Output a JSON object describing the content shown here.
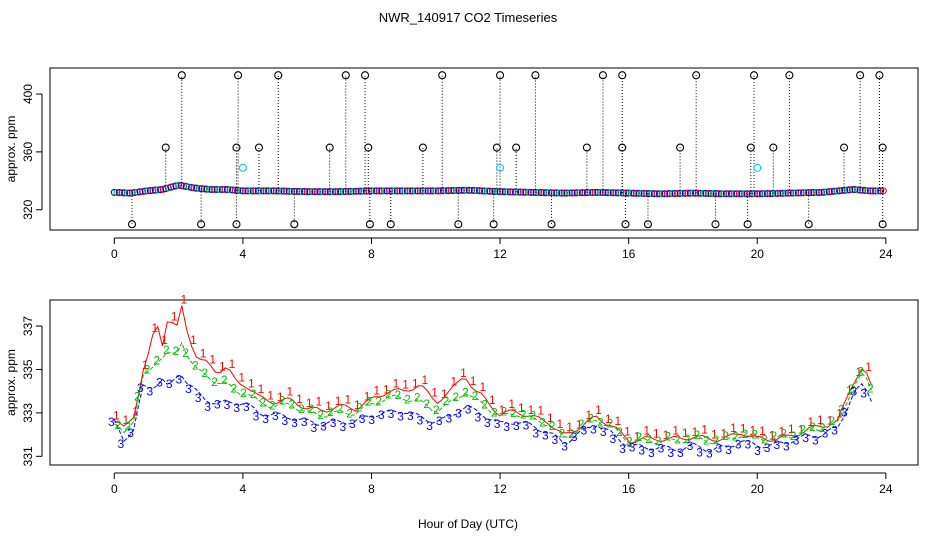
{
  "chart_data": {
    "type": "scatter",
    "title": "NWR_140917  CO2 Timeseries",
    "xlabel": "Hour of Day (UTC)",
    "colors": {
      "s1": "#ff0000",
      "s2": "#00c000",
      "s3": "#0000ff",
      "outlier": "#000000",
      "cyan": "#00d0d0"
    },
    "panels": [
      {
        "ylabel": "approx. ppm",
        "xlim": [
          -2,
          25
        ],
        "ylim": [
          306,
          418
        ],
        "xticks": [
          0,
          4,
          8,
          12,
          16,
          20,
          24
        ],
        "yticks": [
          320,
          360,
          400
        ],
        "baseline_hours": [
          0,
          0.5,
          1,
          1.5,
          2,
          2.5,
          3,
          3.5,
          4,
          5,
          6,
          7,
          8,
          9,
          10,
          11,
          12,
          13,
          14,
          15,
          16,
          17,
          18,
          19,
          20,
          21,
          22,
          23,
          23.5,
          24
        ],
        "baseline_ppm": [
          332,
          331.5,
          333,
          334,
          337,
          335,
          334,
          334,
          333,
          333,
          332.5,
          332.5,
          333,
          333,
          333,
          333.5,
          332.5,
          332,
          331.5,
          332,
          331.5,
          331,
          331.5,
          331,
          331,
          331.5,
          332,
          334,
          333,
          333
        ],
        "outliers_high": [
          2.1,
          3.85,
          5.1,
          7.2,
          7.8,
          10.2,
          12.0,
          13.1,
          15.2,
          15.8,
          18.1,
          19.9,
          21.0,
          23.2,
          23.8
        ],
        "outliers_high_ppm": 413,
        "outliers_mid": [
          1.6,
          3.8,
          4.5,
          6.7,
          7.9,
          9.6,
          11.9,
          12.5,
          14.7,
          15.8,
          17.6,
          19.8,
          20.5,
          22.7,
          23.9
        ],
        "outliers_mid_ppm": 363,
        "outliers_low": [
          0.55,
          2.7,
          3.8,
          5.6,
          7.95,
          8.6,
          10.7,
          11.8,
          13.6,
          15.9,
          16.6,
          18.7,
          19.7,
          21.6,
          23.9
        ],
        "outliers_low_ppm": 310,
        "cyan_points": [
          {
            "x": 4.0,
            "y": 349
          },
          {
            "x": 12.0,
            "y": 349
          },
          {
            "x": 20.0,
            "y": 349
          }
        ]
      },
      {
        "ylabel": "approx. ppm",
        "xlim": [
          -2,
          25
        ],
        "ylim": [
          330.6,
          338.2
        ],
        "xticks": [
          0,
          4,
          8,
          12,
          16,
          20,
          24
        ],
        "yticks": [
          331,
          333,
          335,
          337
        ],
        "series": [
          {
            "name": "1",
            "hours": [
              0,
              0.3,
              0.6,
              0.9,
              1.1,
              1.3,
              1.5,
              1.7,
              1.9,
              2.1,
              2.3,
              2.6,
              2.9,
              3.2,
              3.5,
              3.8,
              4.1,
              4.5,
              5,
              5.5,
              6,
              6.5,
              7,
              7.5,
              8,
              8.5,
              9,
              9.5,
              10,
              10.3,
              10.6,
              10.9,
              11.2,
              11.5,
              12,
              12.5,
              13,
              13.5,
              14,
              14.5,
              15,
              15.5,
              16,
              16.5,
              17,
              17.5,
              18,
              18.5,
              19,
              19.5,
              20,
              20.5,
              21,
              21.5,
              22,
              22.5,
              23,
              23.3,
              23.6
            ],
            "values": [
              332.6,
              332.3,
              332.9,
              334.9,
              335.8,
              337.3,
              336.2,
              337.6,
              336.6,
              337.9,
              336.6,
              335.4,
              335.3,
              334.9,
              335.1,
              334.4,
              334.3,
              333.7,
              333.5,
              333.6,
              333.2,
              333.1,
              333.3,
              333.2,
              333.6,
              334.0,
              334.0,
              334.3,
              333.5,
              333.8,
              334.2,
              334.8,
              334.0,
              333.7,
              332.9,
              333.1,
              332.8,
              332.6,
              331.9,
              332.4,
              332.8,
              332.4,
              331.7,
              331.8,
              331.8,
              331.8,
              331.9,
              331.8,
              331.8,
              332.1,
              331.8,
              331.8,
              331.9,
              332.2,
              332.4,
              332.6,
              334.5,
              335.1,
              334.0
            ]
          },
          {
            "name": "2",
            "hours": [
              0,
              0.3,
              0.6,
              0.9,
              1.1,
              1.3,
              1.5,
              1.7,
              1.9,
              2.1,
              2.3,
              2.6,
              2.9,
              3.2,
              3.5,
              3.8,
              4.1,
              4.5,
              5,
              5.5,
              6,
              6.5,
              7,
              7.5,
              8,
              8.5,
              9,
              9.5,
              10,
              10.3,
              10.6,
              10.9,
              11.2,
              11.5,
              12,
              12.5,
              13,
              13.5,
              14,
              14.5,
              15,
              15.5,
              16,
              16.5,
              17,
              17.5,
              18,
              18.5,
              19,
              19.5,
              20,
              20.5,
              21,
              21.5,
              22,
              22.5,
              23,
              23.3,
              23.6
            ],
            "values": [
              332.4,
              332.1,
              332.7,
              334.6,
              334.9,
              335.4,
              335.6,
              335.8,
              335.5,
              336.3,
              335.6,
              334.9,
              334.7,
              334.4,
              334.3,
              334.0,
              333.9,
              333.5,
              333.3,
              333.4,
              333.0,
              332.9,
              333.0,
              333.0,
              333.4,
              333.7,
              333.7,
              333.5,
              333.1,
              333.3,
              333.6,
              334.0,
              333.6,
              333.4,
              332.8,
              333.0,
              332.7,
              332.5,
              331.8,
              332.3,
              332.7,
              332.3,
              331.7,
              331.7,
              331.7,
              331.7,
              331.8,
              331.7,
              331.7,
              332.0,
              331.8,
              331.8,
              331.9,
              332.1,
              332.3,
              332.5,
              334.3,
              334.8,
              333.9
            ]
          },
          {
            "name": "3",
            "hours": [
              0,
              0.3,
              0.6,
              0.9,
              1.1,
              1.3,
              1.5,
              1.7,
              1.9,
              2.1,
              2.3,
              2.6,
              2.9,
              3.2,
              3.5,
              3.8,
              4.1,
              4.5,
              5,
              5.5,
              6,
              6.5,
              7,
              7.5,
              8,
              8.5,
              9,
              9.5,
              10,
              10.3,
              10.6,
              10.9,
              11.2,
              11.5,
              12,
              12.5,
              13,
              13.5,
              14,
              14.5,
              15,
              15.5,
              16,
              16.5,
              17,
              17.5,
              18,
              18.5,
              19,
              19.5,
              20,
              20.5,
              21,
              21.5,
              22,
              22.5,
              23,
              23.3,
              23.6
            ],
            "values": [
              332.6,
              331.8,
              332.2,
              334.2,
              334.2,
              334.3,
              334.5,
              334.1,
              334.7,
              334.8,
              334.3,
              333.9,
              333.6,
              333.4,
              333.5,
              333.5,
              333.4,
              333.0,
              332.9,
              332.8,
              332.6,
              332.5,
              332.6,
              332.6,
              332.9,
              333.0,
              333.1,
              332.8,
              332.6,
              332.7,
              333.0,
              333.3,
              333.1,
              332.9,
              332.5,
              332.6,
              332.4,
              332.1,
              331.6,
              332.1,
              332.5,
              332.0,
              331.5,
              331.4,
              331.4,
              331.3,
              331.5,
              331.3,
              331.4,
              331.7,
              331.5,
              331.5,
              331.7,
              331.9,
              332.0,
              332.3,
              333.9,
              334.3,
              333.5
            ]
          }
        ]
      }
    ]
  }
}
